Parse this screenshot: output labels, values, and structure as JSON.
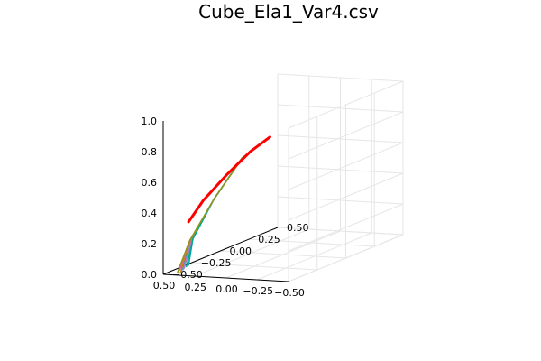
{
  "chart_data": {
    "type": "line",
    "projection": "3d",
    "title": "Cube_Ela1_Var4.csv",
    "xlabel": "",
    "ylabel": "",
    "zlabel": "",
    "grid": true,
    "legend": "none",
    "xlim": [
      -0.5,
      0.5
    ],
    "ylim": [
      -0.5,
      0.5
    ],
    "zlim": [
      0.0,
      1.0
    ],
    "x_ticks": [
      "−0.50",
      "−0.25",
      "0.00",
      "0.25",
      "0.50"
    ],
    "y_ticks": [
      "−0.50",
      "−0.25",
      "0.00",
      "0.25",
      "0.50"
    ],
    "z_ticks": [
      "0.0",
      "0.2",
      "0.4",
      "0.6",
      "0.8",
      "1.0"
    ],
    "colors": [
      "#009af9",
      "#e26f46",
      "#3da44d",
      "#c271d2",
      "#ac8e18",
      "#00a9ad",
      "#ed5e93",
      "#c68225",
      "#00a98d",
      "#8e971e",
      "#ff0000"
    ],
    "series": [
      {
        "color": "#009af9",
        "x": [
          0.42,
          0.36,
          0.25,
          0.1,
          -0.05
        ],
        "y": [
          -0.43,
          -0.4,
          -0.33,
          -0.25,
          -0.17
        ],
        "z": [
          0.0,
          0.2,
          0.45,
          0.7,
          0.82
        ]
      },
      {
        "color": "#e26f46",
        "x": [
          0.45,
          0.37,
          0.25,
          0.1,
          -0.05
        ],
        "y": [
          -0.42,
          -0.4,
          -0.33,
          -0.25,
          -0.17
        ],
        "z": [
          0.0,
          0.2,
          0.45,
          0.7,
          0.82
        ]
      },
      {
        "color": "#3da44d",
        "x": [
          0.46,
          0.38,
          0.25,
          0.1,
          -0.05
        ],
        "y": [
          -0.36,
          -0.38,
          -0.33,
          -0.25,
          -0.17
        ],
        "z": [
          0.0,
          0.2,
          0.45,
          0.7,
          0.82
        ]
      },
      {
        "color": "#c271d2",
        "x": [
          0.44,
          0.37,
          0.25,
          0.1,
          -0.05
        ],
        "y": [
          -0.39,
          -0.39,
          -0.33,
          -0.25,
          -0.17
        ],
        "z": [
          0.0,
          0.2,
          0.45,
          0.7,
          0.82
        ]
      },
      {
        "color": "#ac8e18",
        "x": [
          0.43,
          0.37,
          0.25,
          0.1,
          -0.05
        ],
        "y": [
          -0.45,
          -0.41,
          -0.33,
          -0.25,
          -0.17
        ],
        "z": [
          0.0,
          0.2,
          0.45,
          0.7,
          0.82
        ]
      },
      {
        "color": "#00a9ad",
        "x": [
          0.48,
          0.39,
          0.25,
          0.1,
          -0.05
        ],
        "y": [
          -0.3,
          -0.36,
          -0.33,
          -0.25,
          -0.17
        ],
        "z": [
          0.0,
          0.2,
          0.45,
          0.7,
          0.82
        ]
      },
      {
        "color": "#ed5e93",
        "x": [
          0.46,
          0.38,
          0.25,
          0.1,
          -0.05
        ],
        "y": [
          -0.4,
          -0.39,
          -0.33,
          -0.25,
          -0.17
        ],
        "z": [
          0.0,
          0.2,
          0.45,
          0.7,
          0.82
        ]
      },
      {
        "color": "#c68225",
        "x": [
          0.4,
          0.36,
          0.25,
          0.1,
          -0.05
        ],
        "y": [
          -0.46,
          -0.42,
          -0.33,
          -0.25,
          -0.17
        ],
        "z": [
          0.0,
          0.2,
          0.45,
          0.7,
          0.82
        ]
      },
      {
        "color": "#00a98d",
        "x": [
          0.47,
          0.38,
          0.25,
          0.1,
          -0.05
        ],
        "y": [
          -0.33,
          -0.37,
          -0.33,
          -0.25,
          -0.17
        ],
        "z": [
          0.0,
          0.2,
          0.45,
          0.7,
          0.82
        ]
      },
      {
        "color": "#8e971e",
        "x": [
          0.44,
          0.37,
          0.25,
          0.1,
          -0.05
        ],
        "y": [
          -0.44,
          -0.41,
          -0.33,
          -0.25,
          -0.17
        ],
        "z": [
          0.0,
          0.2,
          0.45,
          0.7,
          0.82
        ]
      },
      {
        "color": "#ff0000",
        "width": 3,
        "x": [
          0.38,
          0.3,
          0.18,
          0.05,
          -0.05
        ],
        "y": [
          -0.41,
          -0.37,
          -0.3,
          -0.23,
          -0.17
        ],
        "z": [
          0.32,
          0.45,
          0.6,
          0.74,
          0.82
        ]
      }
    ]
  }
}
